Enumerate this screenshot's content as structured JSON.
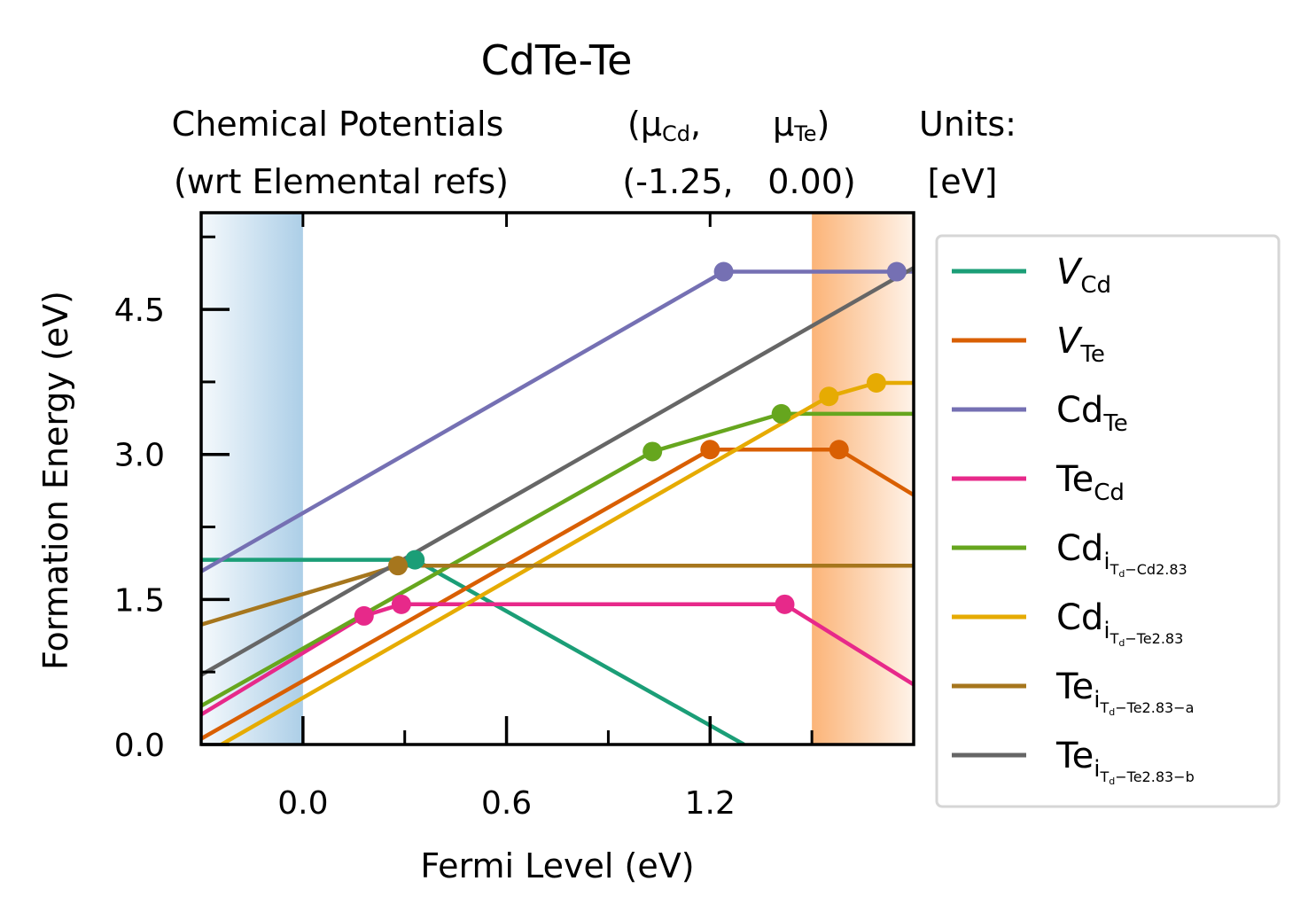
{
  "chart_data": {
    "type": "line",
    "title": "CdTe-Te",
    "subtitle": {
      "row1": [
        "Chemical Potentials",
        "(μ",
        "Cd",
        ",",
        "μ",
        "Te",
        ")",
        "Units:"
      ],
      "row2": [
        "(wrt Elemental refs)",
        "(-1.25,",
        "0.00)",
        "[eV]"
      ]
    },
    "xlabel": "Fermi Level (eV)",
    "ylabel": "Formation Energy (eV)",
    "xlim": [
      -0.3,
      1.8
    ],
    "ylim": [
      0.0,
      5.5
    ],
    "xticks": [
      "0.0",
      "0.6",
      "1.2"
    ],
    "xtick_values": [
      0.0,
      0.6,
      1.2
    ],
    "yticks": [
      "0.0",
      "1.5",
      "3.0",
      "4.5"
    ],
    "ytick_values": [
      0.0,
      1.5,
      3.0,
      4.5
    ],
    "x_minor_ticks": [
      0.3,
      0.9,
      1.5
    ],
    "y_minor_ticks": [
      0.75,
      2.25,
      3.75,
      5.25
    ],
    "shaded_regions": [
      {
        "name": "valence-band",
        "x": [
          -0.3,
          0.0
        ],
        "color": "#a8cce6"
      },
      {
        "name": "conduction-band",
        "x": [
          1.5,
          1.8
        ],
        "color": "#fbb071"
      }
    ],
    "legend_position": "outside-right",
    "series": [
      {
        "key": "V_Cd",
        "label": {
          "base": "V",
          "sub": "Cd",
          "italic": true
        },
        "color": "#1b9e77",
        "points": [
          [
            -0.3,
            1.91
          ],
          [
            0.33,
            1.91
          ],
          [
            1.3,
            0.0
          ]
        ],
        "markers": [
          [
            0.33,
            1.91
          ]
        ]
      },
      {
        "key": "V_Te",
        "label": {
          "base": "V",
          "sub": "Te",
          "italic": true
        },
        "color": "#d95f02",
        "points": [
          [
            -0.3,
            0.06
          ],
          [
            1.2,
            3.05
          ],
          [
            1.58,
            3.05
          ],
          [
            1.8,
            2.58
          ]
        ],
        "markers": [
          [
            1.2,
            3.05
          ],
          [
            1.58,
            3.05
          ]
        ]
      },
      {
        "key": "Cd_Te",
        "label": {
          "base": "Cd",
          "sub": "Te"
        },
        "color": "#7570b3",
        "points": [
          [
            -0.3,
            1.79
          ],
          [
            1.24,
            4.89
          ],
          [
            1.8,
            4.89
          ]
        ],
        "markers": [
          [
            1.24,
            4.89
          ],
          [
            1.75,
            4.89
          ]
        ]
      },
      {
        "key": "Te_Cd",
        "label": {
          "base": "Te",
          "sub": "Cd"
        },
        "color": "#e7298a",
        "points": [
          [
            -0.3,
            0.31
          ],
          [
            0.18,
            1.33
          ],
          [
            0.29,
            1.45
          ],
          [
            1.42,
            1.45
          ],
          [
            1.8,
            0.62
          ]
        ],
        "markers": [
          [
            0.18,
            1.33
          ],
          [
            0.29,
            1.45
          ],
          [
            1.42,
            1.45
          ]
        ]
      },
      {
        "key": "Cd_i_Cd",
        "label": {
          "base": "Cd",
          "sub": "i",
          "subsub": "T",
          "subsubsub": "d",
          "tail": "−Cd2.83"
        },
        "color": "#66a61e",
        "points": [
          [
            -0.3,
            0.4
          ],
          [
            1.03,
            3.03
          ],
          [
            1.41,
            3.42
          ],
          [
            1.8,
            3.42
          ]
        ],
        "markers": [
          [
            1.03,
            3.03
          ],
          [
            1.41,
            3.42
          ]
        ]
      },
      {
        "key": "Cd_i_Te",
        "label": {
          "base": "Cd",
          "sub": "i",
          "subsub": "T",
          "subsubsub": "d",
          "tail": "−Te2.83"
        },
        "color": "#e6ab02",
        "points": [
          [
            -0.3,
            -0.12
          ],
          [
            1.55,
            3.6
          ],
          [
            1.69,
            3.74
          ],
          [
            1.8,
            3.74
          ]
        ],
        "markers": [
          [
            1.55,
            3.6
          ],
          [
            1.69,
            3.74
          ]
        ]
      },
      {
        "key": "Te_i_a",
        "label": {
          "base": "Te",
          "sub": "i",
          "subsub": "T",
          "subsubsub": "d",
          "tail": "−Te2.83−a"
        },
        "color": "#a6761d",
        "points": [
          [
            -0.3,
            1.24
          ],
          [
            0.28,
            1.85
          ],
          [
            1.8,
            1.85
          ]
        ],
        "markers": [
          [
            0.28,
            1.85
          ]
        ]
      },
      {
        "key": "Te_i_b",
        "label": {
          "base": "Te",
          "sub": "i",
          "subsub": "T",
          "subsubsub": "d",
          "tail": "−Te2.83−b"
        },
        "color": "#666666",
        "points": [
          [
            -0.3,
            0.72
          ],
          [
            1.8,
            4.93
          ]
        ],
        "markers": []
      }
    ]
  }
}
